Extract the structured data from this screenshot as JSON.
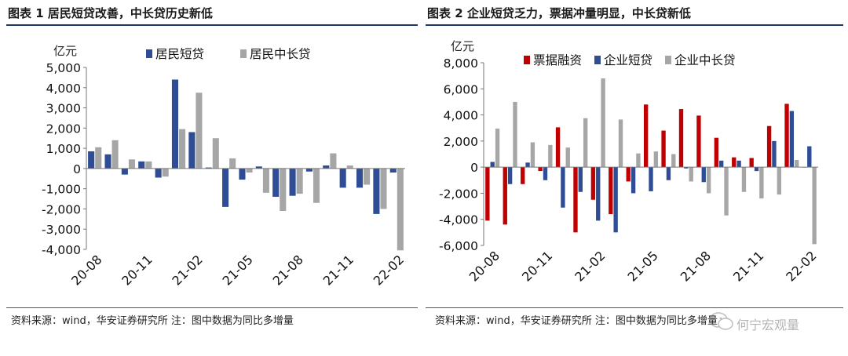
{
  "left": {
    "title": "图表 1 居民短贷改善，中长贷历史新低",
    "source": "资料来源：wind，华安证券研究所 注：图中数据为同比多增量"
  },
  "right": {
    "title": "图表 2 企业短贷乏力，票据冲量明显，中长贷新低",
    "source": "资料来源：wind，华安证券研究所 注：图中数据为同比多增量"
  },
  "watermark": {
    "text": "何宁宏观量"
  },
  "chart_data": [
    {
      "type": "bar",
      "unit_label": "亿元",
      "categories": [
        "20-08",
        "20-09",
        "20-10",
        "20-11",
        "20-12",
        "21-01",
        "21-02",
        "21-03",
        "21-04",
        "21-05",
        "21-06",
        "21-07",
        "21-08",
        "21-09",
        "21-10",
        "21-11",
        "21-12",
        "22-01",
        "22-02"
      ],
      "tick_labels": [
        "20-08",
        "20-11",
        "21-02",
        "21-05",
        "21-08",
        "21-11",
        "22-02"
      ],
      "ylim": [
        -4000,
        5000
      ],
      "yticks": [
        -4000,
        -3000,
        -2000,
        -1000,
        0,
        1000,
        2000,
        3000,
        4000,
        5000
      ],
      "ytick_labels": [
        "-4,000",
        "-3,000",
        "-2,000",
        "-1,000",
        "0",
        "1,000",
        "2,000",
        "3,000",
        "4,000",
        "5,000"
      ],
      "series": [
        {
          "name": "居民短贷",
          "color": "#2e4d94",
          "values": [
            850,
            700,
            -300,
            350,
            -450,
            4400,
            1800,
            50,
            -1900,
            -550,
            100,
            -1400,
            -1350,
            -150,
            150,
            -950,
            -950,
            -2250,
            -200
          ]
        },
        {
          "name": "居民中长贷",
          "color": "#a6a6a6",
          "values": [
            1050,
            1400,
            450,
            350,
            -400,
            1950,
            3750,
            1500,
            500,
            -200,
            -1200,
            -2100,
            -1250,
            -1700,
            750,
            150,
            -800,
            -2000,
            -4050
          ]
        }
      ]
    },
    {
      "type": "bar",
      "unit_label": "亿元",
      "categories": [
        "20-08",
        "20-09",
        "20-10",
        "20-11",
        "20-12",
        "21-01",
        "21-02",
        "21-03",
        "21-04",
        "21-05",
        "21-06",
        "21-07",
        "21-08",
        "21-09",
        "21-10",
        "21-11",
        "21-12",
        "22-01",
        "22-02"
      ],
      "tick_labels": [
        "20-08",
        "20-11",
        "21-02",
        "21-05",
        "21-08",
        "21-11",
        "22-02"
      ],
      "ylim": [
        -6000,
        8000
      ],
      "yticks": [
        -6000,
        -4000,
        -2000,
        0,
        2000,
        4000,
        6000,
        8000
      ],
      "ytick_labels": [
        "-6,000",
        "-4,000",
        "-2,000",
        "0",
        "2,000",
        "4,000",
        "6,000",
        "8,000"
      ],
      "series": [
        {
          "name": "票据融资",
          "color": "#c00000",
          "values": [
            -4100,
            -4400,
            -1300,
            -300,
            3050,
            -5000,
            -2500,
            -3600,
            -1100,
            4800,
            2800,
            4450,
            3950,
            2250,
            750,
            700,
            3150,
            4850,
            0
          ]
        },
        {
          "name": "企业短贷",
          "color": "#2e4d94",
          "values": [
            400,
            -1300,
            350,
            -1000,
            -3100,
            -1900,
            -4100,
            -5000,
            -2000,
            -1850,
            -1000,
            -100,
            -1150,
            500,
            500,
            -300,
            2000,
            4300,
            1600
          ]
        },
        {
          "name": "企业中长贷",
          "color": "#a6a6a6",
          "values": [
            2950,
            5000,
            1900,
            1700,
            1500,
            3750,
            6800,
            3650,
            1050,
            1200,
            1000,
            -1100,
            -2000,
            -3700,
            -1900,
            -2400,
            -2100,
            550,
            -5900
          ]
        }
      ]
    }
  ]
}
